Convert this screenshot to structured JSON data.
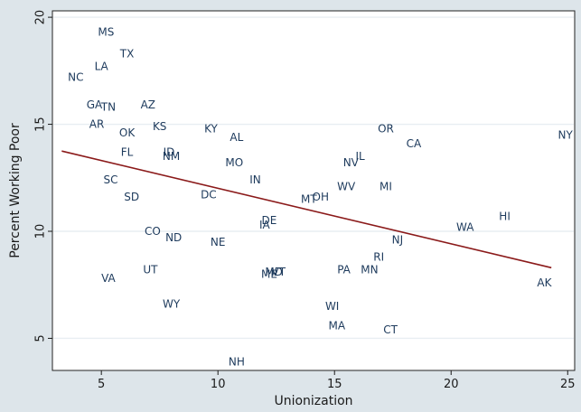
{
  "chart_data": {
    "type": "scatter",
    "title": "",
    "xlabel": "Unionization",
    "ylabel": "Percent Working Poor",
    "xlim": [
      2.9,
      25.3
    ],
    "ylim": [
      3.5,
      20.3
    ],
    "xticks": [
      5,
      10,
      15,
      20,
      25
    ],
    "yticks": [
      5,
      10,
      15,
      20
    ],
    "grid": true,
    "points": [
      {
        "label": "MS",
        "x": 5.2,
        "y": 19.3
      },
      {
        "label": "TX",
        "x": 6.1,
        "y": 18.3
      },
      {
        "label": "LA",
        "x": 5.0,
        "y": 17.7
      },
      {
        "label": "NC",
        "x": 3.9,
        "y": 17.2
      },
      {
        "label": "GA",
        "x": 4.7,
        "y": 15.9
      },
      {
        "label": "TN",
        "x": 5.3,
        "y": 15.8
      },
      {
        "label": "AZ",
        "x": 7.0,
        "y": 15.9
      },
      {
        "label": "AR",
        "x": 4.8,
        "y": 15.0
      },
      {
        "label": "OK",
        "x": 6.1,
        "y": 14.6
      },
      {
        "label": "KS",
        "x": 7.5,
        "y": 14.9
      },
      {
        "label": "KY",
        "x": 9.7,
        "y": 14.8
      },
      {
        "label": "AL",
        "x": 10.8,
        "y": 14.4
      },
      {
        "label": "OR",
        "x": 17.2,
        "y": 14.8
      },
      {
        "label": "NY",
        "x": 24.9,
        "y": 14.5
      },
      {
        "label": "CA",
        "x": 18.4,
        "y": 14.1
      },
      {
        "label": "FL",
        "x": 6.1,
        "y": 13.7
      },
      {
        "label": "ID",
        "x": 7.9,
        "y": 13.7
      },
      {
        "label": "NM",
        "x": 8.0,
        "y": 13.5
      },
      {
        "label": "MO",
        "x": 10.7,
        "y": 13.2
      },
      {
        "label": "IL",
        "x": 16.1,
        "y": 13.5
      },
      {
        "label": "NV",
        "x": 15.7,
        "y": 13.2
      },
      {
        "label": "SC",
        "x": 5.4,
        "y": 12.4
      },
      {
        "label": "IN",
        "x": 11.6,
        "y": 12.4
      },
      {
        "label": "WV",
        "x": 15.5,
        "y": 12.1
      },
      {
        "label": "MI",
        "x": 17.2,
        "y": 12.1
      },
      {
        "label": "SD",
        "x": 6.3,
        "y": 11.6
      },
      {
        "label": "DC",
        "x": 9.6,
        "y": 11.7
      },
      {
        "label": "MT",
        "x": 13.9,
        "y": 11.5
      },
      {
        "label": "OH",
        "x": 14.4,
        "y": 11.6
      },
      {
        "label": "HI",
        "x": 22.3,
        "y": 10.7
      },
      {
        "label": "DE",
        "x": 12.2,
        "y": 10.5
      },
      {
        "label": "IA",
        "x": 12.0,
        "y": 10.3
      },
      {
        "label": "WA",
        "x": 20.6,
        "y": 10.2
      },
      {
        "label": "CO",
        "x": 7.2,
        "y": 10.0
      },
      {
        "label": "ND",
        "x": 8.1,
        "y": 9.7
      },
      {
        "label": "NE",
        "x": 10.0,
        "y": 9.5
      },
      {
        "label": "NJ",
        "x": 17.7,
        "y": 9.6
      },
      {
        "label": "RI",
        "x": 16.9,
        "y": 8.8
      },
      {
        "label": "UT",
        "x": 7.1,
        "y": 8.2
      },
      {
        "label": "PA",
        "x": 15.4,
        "y": 8.2
      },
      {
        "label": "MN",
        "x": 16.5,
        "y": 8.2
      },
      {
        "label": "ME",
        "x": 12.2,
        "y": 8.0
      },
      {
        "label": "MD",
        "x": 12.4,
        "y": 8.1
      },
      {
        "label": "VT",
        "x": 12.6,
        "y": 8.1
      },
      {
        "label": "VA",
        "x": 5.3,
        "y": 7.8
      },
      {
        "label": "AK",
        "x": 24.0,
        "y": 7.6
      },
      {
        "label": "WY",
        "x": 8.0,
        "y": 6.6
      },
      {
        "label": "WI",
        "x": 14.9,
        "y": 6.5
      },
      {
        "label": "MA",
        "x": 15.1,
        "y": 5.6
      },
      {
        "label": "CT",
        "x": 17.4,
        "y": 5.4
      },
      {
        "label": "NH",
        "x": 10.8,
        "y": 3.9
      }
    ],
    "fit_line": {
      "x": [
        3.3,
        24.3
      ],
      "y": [
        13.75,
        8.3
      ],
      "color": "#8b1a1a"
    },
    "colors": {
      "plot_bg": "#ffffff",
      "frame_bg": "#dde5ea",
      "grid": "#e8eef2",
      "label": "#1d3a5c"
    }
  }
}
